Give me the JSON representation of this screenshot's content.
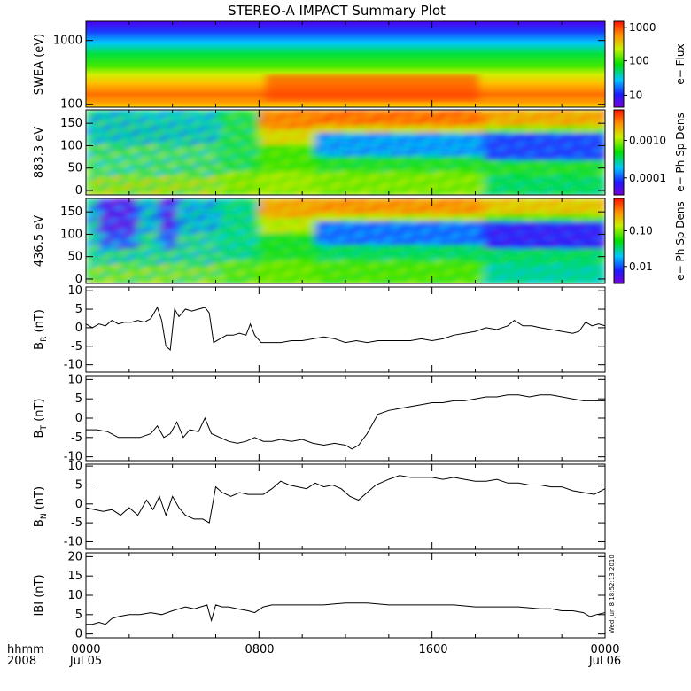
{
  "title": "STEREO-A IMPACT Summary Plot",
  "footer": {
    "left_line1": "hhmm",
    "left_line2": "2008",
    "x_ticks": [
      "0000",
      "0800",
      "1600",
      "0000"
    ],
    "x_dates": [
      "Jul 05",
      "Jul 06"
    ]
  },
  "stamp": "Wed Jun  8 18:52:13 2010",
  "chart_data": [
    {
      "type": "heatmap",
      "ylabel": "SWEA (eV)",
      "ylog": true,
      "yticks": [
        {
          "v": 100,
          "label": "100"
        },
        {
          "v": 1000,
          "label": "1000"
        }
      ],
      "ylim": [
        90,
        2000
      ],
      "xlim": [
        0,
        24
      ],
      "colorbar": {
        "label": "e− Flux",
        "ticks": [
          "10",
          "100",
          "1000"
        ],
        "log": true
      }
    },
    {
      "type": "heatmap",
      "ylabel": "883.3 eV",
      "yticks": [
        {
          "v": 0,
          "label": "0"
        },
        {
          "v": 50,
          "label": "50"
        },
        {
          "v": 100,
          "label": "100"
        },
        {
          "v": 150,
          "label": "150"
        }
      ],
      "ylim": [
        -10,
        180
      ],
      "xlim": [
        0,
        24
      ],
      "colorbar": {
        "label": "e− Ph Sp Dens",
        "ticks": [
          "0.0001",
          "0.0010"
        ],
        "log": true
      }
    },
    {
      "type": "heatmap",
      "ylabel": "436.5 eV",
      "yticks": [
        {
          "v": 0,
          "label": "0"
        },
        {
          "v": 50,
          "label": "50"
        },
        {
          "v": 100,
          "label": "100"
        },
        {
          "v": 150,
          "label": "150"
        }
      ],
      "ylim": [
        -10,
        180
      ],
      "xlim": [
        0,
        24
      ],
      "colorbar": {
        "label": "e− Ph Sp Dens",
        "ticks": [
          "0.01",
          "0.10"
        ],
        "log": true
      }
    },
    {
      "type": "line",
      "ylabel": "BR (nT)",
      "ylabel_main": "B",
      "ylabel_sub": "R",
      "ylabel_unit": " (nT)",
      "ylim": [
        -12,
        11
      ],
      "yticks": [
        -10,
        -5,
        0,
        5,
        10
      ],
      "xlim": [
        0,
        24
      ],
      "x": [
        0,
        0.3,
        0.6,
        0.9,
        1.2,
        1.5,
        1.8,
        2.1,
        2.4,
        2.7,
        3.0,
        3.3,
        3.5,
        3.7,
        3.9,
        4.1,
        4.3,
        4.6,
        4.9,
        5.2,
        5.5,
        5.7,
        5.9,
        6.2,
        6.5,
        6.8,
        7.1,
        7.4,
        7.6,
        7.8,
        8.1,
        8.5,
        9,
        9.5,
        10,
        10.5,
        11,
        11.5,
        12,
        12.5,
        13,
        13.5,
        14,
        14.5,
        15,
        15.5,
        16,
        16.5,
        17,
        17.5,
        18,
        18.5,
        19,
        19.5,
        19.8,
        20.2,
        20.6,
        21,
        21.5,
        22,
        22.5,
        22.8,
        23.1,
        23.4,
        23.7,
        24
      ],
      "y": [
        1,
        0,
        1,
        0.5,
        2,
        1,
        1.5,
        1.5,
        2,
        1.5,
        2.5,
        5.5,
        2,
        -5,
        -6,
        5,
        3,
        5,
        4.5,
        5,
        5.5,
        4,
        -4,
        -3,
        -2,
        -2,
        -1.5,
        -2,
        1,
        -2,
        -4,
        -4,
        -4,
        -3.5,
        -3.5,
        -3,
        -2.5,
        -3,
        -4,
        -3.5,
        -4,
        -3.5,
        -3.5,
        -3.5,
        -3.5,
        -3,
        -3.5,
        -3,
        -2,
        -1.5,
        -1,
        0,
        -0.5,
        0.5,
        2,
        0.5,
        0.5,
        0,
        -0.5,
        -1,
        -1.5,
        -1,
        1.5,
        0.5,
        1,
        0.5
      ]
    },
    {
      "type": "line",
      "ylabel": "BT (nT)",
      "ylabel_main": "B",
      "ylabel_sub": "T",
      "ylabel_unit": " (nT)",
      "ylim": [
        -11,
        11
      ],
      "yticks": [
        -10,
        -5,
        0,
        5,
        10
      ],
      "xlim": [
        0,
        24
      ],
      "x": [
        0,
        0.5,
        1,
        1.5,
        2,
        2.5,
        3,
        3.3,
        3.6,
        3.9,
        4.2,
        4.5,
        4.8,
        5.2,
        5.5,
        5.8,
        6.2,
        6.6,
        7,
        7.4,
        7.8,
        8.2,
        8.6,
        9,
        9.5,
        10,
        10.5,
        11,
        11.5,
        12,
        12.3,
        12.6,
        13,
        13.5,
        14,
        14.5,
        15,
        15.5,
        16,
        16.5,
        17,
        17.5,
        18,
        18.5,
        19,
        19.5,
        20,
        20.5,
        21,
        21.5,
        22,
        22.5,
        23,
        23.5,
        24
      ],
      "y": [
        -3,
        -3,
        -3.5,
        -5,
        -5,
        -5,
        -4,
        -2,
        -5,
        -4,
        -1,
        -5,
        -3,
        -3.5,
        0,
        -4,
        -5,
        -6,
        -6.5,
        -6,
        -5,
        -6,
        -6,
        -5.5,
        -6,
        -5.5,
        -6.5,
        -7,
        -6.5,
        -7,
        -8,
        -7,
        -4,
        1,
        2,
        2.5,
        3,
        3.5,
        4,
        4,
        4.5,
        4.5,
        5,
        5.5,
        5.5,
        6,
        6,
        5.5,
        6,
        6,
        5.5,
        5,
        4.5,
        4.5,
        4.5
      ]
    },
    {
      "type": "line",
      "ylabel": "BN (nT)",
      "ylabel_main": "B",
      "ylabel_sub": "N",
      "ylabel_unit": " (nT)",
      "ylim": [
        -12,
        10.5
      ],
      "yticks": [
        -10,
        -5,
        0,
        5,
        10
      ],
      "xlim": [
        0,
        24
      ],
      "x": [
        0,
        0.4,
        0.8,
        1.2,
        1.6,
        2.0,
        2.4,
        2.8,
        3.1,
        3.4,
        3.7,
        4.0,
        4.3,
        4.6,
        5.0,
        5.4,
        5.7,
        6.0,
        6.3,
        6.7,
        7.1,
        7.5,
        7.8,
        8.2,
        8.6,
        9.0,
        9.4,
        9.8,
        10.2,
        10.6,
        11,
        11.4,
        11.8,
        12.2,
        12.6,
        13,
        13.4,
        14,
        14.5,
        15,
        15.5,
        16,
        16.5,
        17,
        17.5,
        18,
        18.5,
        19,
        19.5,
        20,
        20.5,
        21,
        21.5,
        22,
        22.5,
        23,
        23.5,
        24
      ],
      "y": [
        -1,
        -1.5,
        -2,
        -1.5,
        -3,
        -1,
        -3,
        1,
        -1.5,
        2,
        -3,
        2,
        -1,
        -3,
        -4,
        -4,
        -5,
        4.5,
        3,
        2,
        3,
        2.5,
        2.5,
        2.5,
        4,
        6,
        5,
        4.5,
        4,
        5.5,
        4.5,
        5,
        4,
        2,
        1,
        3,
        5,
        6.5,
        7.5,
        7,
        7,
        7,
        6.5,
        7,
        6.5,
        6,
        6,
        6.5,
        5.5,
        5.5,
        5,
        5,
        4.5,
        4.5,
        3.5,
        3,
        2.5,
        4
      ]
    },
    {
      "type": "line",
      "ylabel": "|B| (nT)",
      "ylabel_main": "IBI",
      "ylabel_sub": "",
      "ylabel_unit": " (nT)",
      "ylim": [
        -1,
        21
      ],
      "yticks": [
        0,
        5,
        10,
        15,
        20
      ],
      "xlim": [
        0,
        24
      ],
      "x": [
        0,
        0.3,
        0.6,
        0.9,
        1.2,
        1.5,
        2,
        2.5,
        3,
        3.5,
        4,
        4.3,
        4.6,
        5,
        5.3,
        5.6,
        5.8,
        6,
        6.3,
        6.6,
        7,
        7.5,
        7.8,
        8.2,
        8.6,
        9,
        10,
        11,
        12,
        13,
        14,
        15,
        16,
        17,
        18,
        19,
        20,
        21,
        21.5,
        22,
        22.5,
        23,
        23.3,
        23.6,
        24
      ],
      "y": [
        2.5,
        2.5,
        3,
        2.5,
        4,
        4.5,
        5,
        5,
        5.5,
        5,
        6,
        6.5,
        7,
        6.5,
        7,
        7.5,
        3.5,
        7.5,
        7,
        7,
        6.5,
        6,
        5.5,
        7,
        7.5,
        7.5,
        7.5,
        7.5,
        8,
        8,
        7.5,
        7.5,
        7.5,
        7.5,
        7,
        7,
        7,
        6.5,
        6.5,
        6,
        6,
        5.5,
        4.5,
        5,
        5.5
      ]
    }
  ]
}
